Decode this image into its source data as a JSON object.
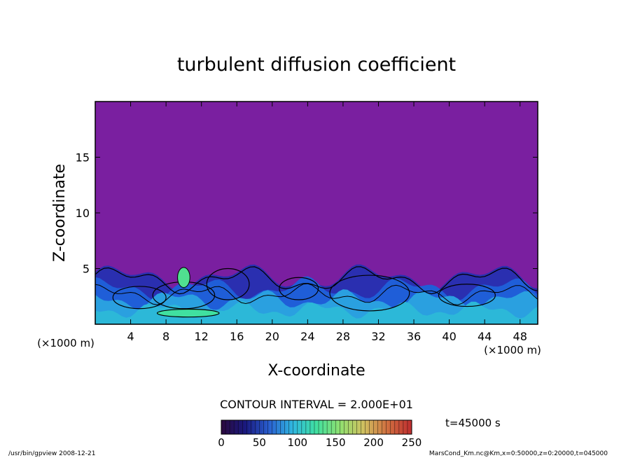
{
  "chart_data": {
    "type": "heatmap",
    "title": "turbulent diffusion coefficient",
    "xlabel": "X-coordinate",
    "ylabel": "Z-coordinate",
    "x_unit": "(×1000 m)",
    "y_unit": "(×1000 m)",
    "xlim": [
      0,
      50
    ],
    "ylim": [
      0,
      20
    ],
    "xticks": [
      4,
      8,
      12,
      16,
      20,
      24,
      28,
      32,
      36,
      40,
      44,
      48
    ],
    "yticks": [
      5,
      10,
      15
    ],
    "contour_interval": "CONTOUR INTERVAL = 2.000E+01",
    "colorbar": {
      "ticks": [
        0,
        50,
        100,
        150,
        200,
        250
      ],
      "min": 0,
      "max": 250,
      "colors": [
        "#2a0a40",
        "#1a1a80",
        "#2a60d0",
        "#30b8e0",
        "#40e0a0",
        "#90e070",
        "#d0c060",
        "#d07040",
        "#c03030"
      ]
    },
    "background_color": "#7a1fa0",
    "time_label": "t=45000 s",
    "turbulent_layer_top_km": 6,
    "footer_left": "/usr/bin/gpview   2008-12-21",
    "footer_right": "MarsCond_Km.nc@Km,x=0:50000,z=0:20000,t=045000"
  }
}
